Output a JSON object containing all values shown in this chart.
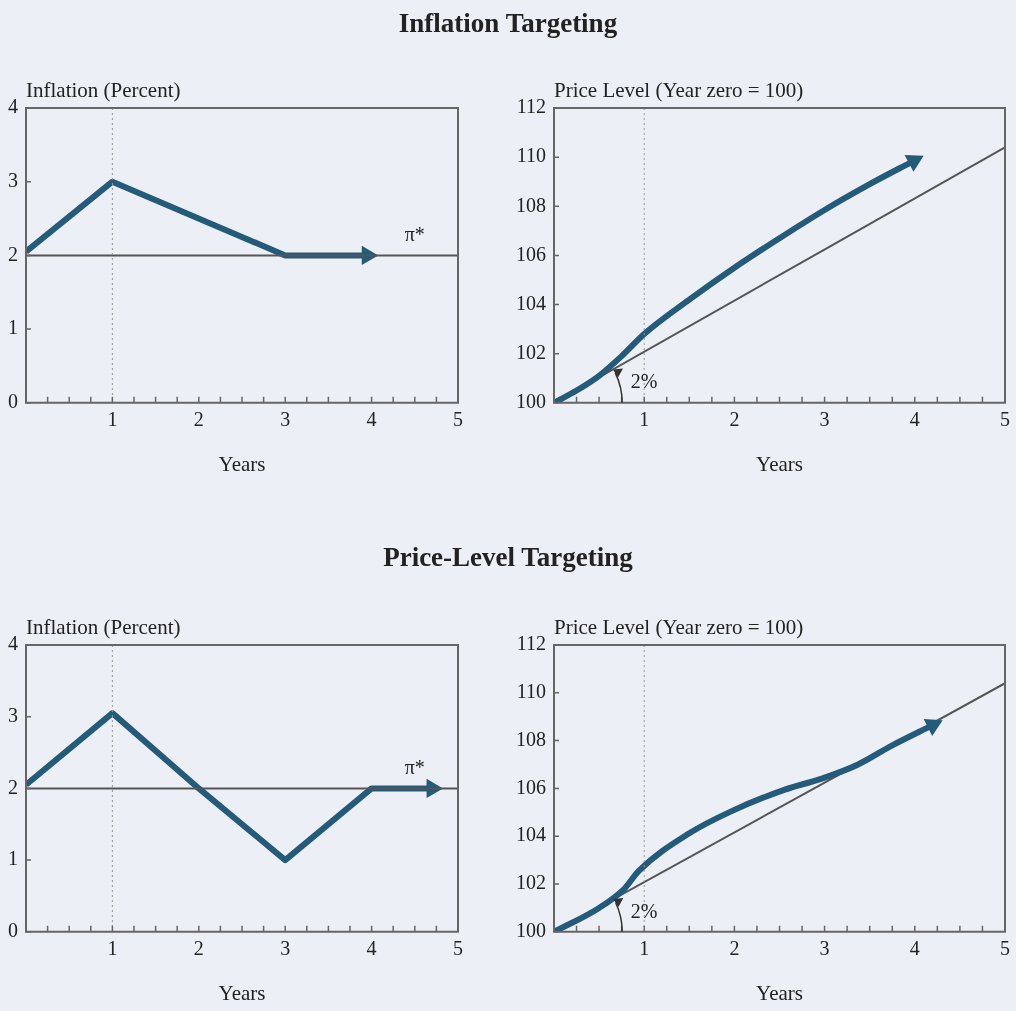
{
  "chart_data": [
    {
      "type": "line",
      "title": "Inflation Targeting",
      "ylabel": "Inflation (Percent)",
      "xlabel": "Years",
      "xlim": [
        0,
        5
      ],
      "xticks": [
        {
          "value": 0,
          "label": null
        },
        {
          "value": 0.25,
          "label": null
        },
        {
          "value": 0.5,
          "label": null
        },
        {
          "value": 0.75,
          "label": null
        },
        1,
        {
          "value": 1.25,
          "label": null
        },
        {
          "value": 1.5,
          "label": null
        },
        {
          "value": 1.75,
          "label": null
        },
        2,
        {
          "value": 2.25,
          "label": null
        },
        {
          "value": 2.5,
          "label": null
        },
        {
          "value": 2.75,
          "label": null
        },
        3,
        {
          "value": 3.25,
          "label": null
        },
        {
          "value": 3.5,
          "label": null
        },
        {
          "value": 3.75,
          "label": null
        },
        4,
        {
          "value": 4.25,
          "label": null
        },
        {
          "value": 4.5,
          "label": null
        },
        {
          "value": 4.75,
          "label": null
        },
        5
      ],
      "ylim": [
        0,
        4
      ],
      "yticks": [
        0,
        1,
        2,
        3,
        4
      ],
      "series": [
        {
          "color": "#245a7a",
          "x": [
            0,
            1,
            3,
            3.95
          ],
          "values": [
            2.05,
            3,
            2,
            2
          ]
        }
      ],
      "ref_lines": [
        {
          "axis": "y",
          "value": 2,
          "label": "π*",
          "color": "#555555"
        },
        {
          "axis": "x",
          "value": 1,
          "line_style": "dotted",
          "color": "#999999"
        }
      ],
      "grid": false,
      "legend": false
    },
    {
      "type": "line",
      "ylabel": "Price Level (Year zero = 100)",
      "xlabel": "Years",
      "xlim": [
        0,
        5
      ],
      "xticks": [
        {
          "value": 0,
          "label": null
        },
        {
          "value": 0.25,
          "label": null
        },
        {
          "value": 0.5,
          "label": null
        },
        {
          "value": 0.75,
          "label": null
        },
        1,
        {
          "value": 1.25,
          "label": null
        },
        {
          "value": 1.5,
          "label": null
        },
        {
          "value": 1.75,
          "label": null
        },
        2,
        {
          "value": 2.25,
          "label": null
        },
        {
          "value": 2.5,
          "label": null
        },
        {
          "value": 2.75,
          "label": null
        },
        3,
        {
          "value": 3.25,
          "label": null
        },
        {
          "value": 3.5,
          "label": null
        },
        {
          "value": 3.75,
          "label": null
        },
        4,
        {
          "value": 4.25,
          "label": null
        },
        {
          "value": 4.5,
          "label": null
        },
        {
          "value": 4.75,
          "label": null
        },
        5
      ],
      "ylim": [
        100,
        112
      ],
      "yticks": [
        100,
        102,
        104,
        106,
        108,
        110,
        112
      ],
      "series": [
        {
          "color": "#245a7a",
          "x": [
            0,
            0.25,
            0.5,
            0.75,
            1,
            1.5,
            2,
            2.5,
            3,
            3.5,
            3.99
          ],
          "values": [
            100,
            100.5,
            101.1,
            101.9,
            102.8,
            104.2,
            105.5,
            106.7,
            107.85,
            108.9,
            109.85
          ]
        },
        {
          "color": "#555555",
          "x": [
            0,
            5
          ],
          "values": [
            100,
            110.4
          ]
        }
      ],
      "ref_lines": [
        {
          "axis": "x",
          "value": 1,
          "line_style": "dotted",
          "color": "#999999"
        }
      ],
      "annotations": [
        {
          "text": "2%",
          "x": 1,
          "y": 100.8
        }
      ],
      "grid": false,
      "legend": false
    },
    {
      "type": "line",
      "title": "Price-Level Targeting",
      "ylabel": "Inflation (Percent)",
      "xlabel": "Years",
      "xlim": [
        0,
        5
      ],
      "xticks": [
        {
          "value": 0,
          "label": null
        },
        {
          "value": 0.25,
          "label": null
        },
        {
          "value": 0.5,
          "label": null
        },
        {
          "value": 0.75,
          "label": null
        },
        1,
        {
          "value": 1.25,
          "label": null
        },
        {
          "value": 1.5,
          "label": null
        },
        {
          "value": 1.75,
          "label": null
        },
        2,
        {
          "value": 2.25,
          "label": null
        },
        {
          "value": 2.5,
          "label": null
        },
        {
          "value": 2.75,
          "label": null
        },
        3,
        {
          "value": 3.25,
          "label": null
        },
        {
          "value": 3.5,
          "label": null
        },
        {
          "value": 3.75,
          "label": null
        },
        4,
        {
          "value": 4.25,
          "label": null
        },
        {
          "value": 4.5,
          "label": null
        },
        {
          "value": 4.75,
          "label": null
        },
        5
      ],
      "ylim": [
        0,
        4
      ],
      "yticks": [
        0,
        1,
        2,
        3,
        4
      ],
      "series": [
        {
          "color": "#245a7a",
          "x": [
            0,
            1,
            2,
            3,
            4,
            4.7
          ],
          "values": [
            2.05,
            3.05,
            2,
            1,
            2,
            2
          ]
        }
      ],
      "ref_lines": [
        {
          "axis": "y",
          "value": 2,
          "label": "π*",
          "color": "#555555"
        },
        {
          "axis": "x",
          "value": 1,
          "line_style": "dotted",
          "color": "#999999"
        }
      ],
      "grid": false,
      "legend": false
    },
    {
      "type": "line",
      "ylabel": "Price Level (Year zero = 100)",
      "xlabel": "Years",
      "xlim": [
        0,
        5
      ],
      "xticks": [
        {
          "value": 0,
          "label": null
        },
        {
          "value": 0.25,
          "label": null
        },
        {
          "value": 0.5,
          "label": null
        },
        {
          "value": 0.75,
          "label": null
        },
        1,
        {
          "value": 1.25,
          "label": null
        },
        {
          "value": 1.5,
          "label": null
        },
        {
          "value": 1.75,
          "label": null
        },
        2,
        {
          "value": 2.25,
          "label": null
        },
        {
          "value": 2.5,
          "label": null
        },
        {
          "value": 2.75,
          "label": null
        },
        3,
        {
          "value": 3.25,
          "label": null
        },
        {
          "value": 3.5,
          "label": null
        },
        {
          "value": 3.75,
          "label": null
        },
        4,
        {
          "value": 4.25,
          "label": null
        },
        {
          "value": 4.5,
          "label": null
        },
        {
          "value": 4.75,
          "label": null
        },
        5
      ],
      "ylim": [
        100,
        112
      ],
      "yticks": [
        100,
        102,
        104,
        106,
        108,
        110,
        112
      ],
      "series": [
        {
          "color": "#245a7a",
          "x": [
            0,
            0.5,
            0.78,
            0.94,
            1.49,
            1.97,
            2.56,
            2.96,
            3.36,
            3.75,
            4.2
          ],
          "values": [
            100,
            101,
            101.8,
            102.55,
            104.1,
            105.05,
            105.95,
            106.4,
            106.98,
            107.8,
            108.65
          ]
        },
        {
          "color": "#555555",
          "x": [
            0,
            5
          ],
          "values": [
            100,
            110.4
          ]
        }
      ],
      "ref_lines": [
        {
          "axis": "x",
          "value": 1,
          "line_style": "dotted",
          "color": "#999999"
        }
      ],
      "annotations": [
        {
          "text": "2%",
          "x": 1,
          "y": 100.8
        }
      ],
      "grid": false,
      "legend": false
    }
  ]
}
